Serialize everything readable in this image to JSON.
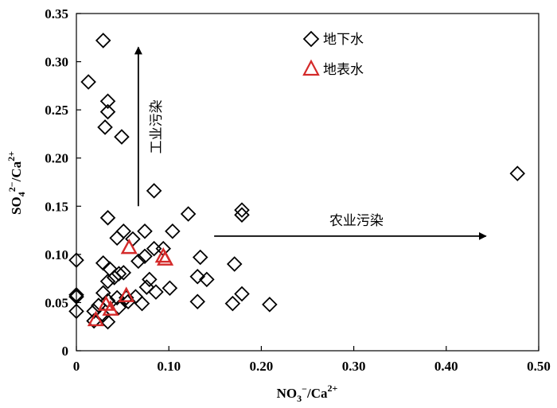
{
  "chart_data": {
    "type": "scatter",
    "xlabel": "NO3-/Ca2+",
    "ylabel": "SO42-/Ca2+",
    "xlim": [
      0,
      0.5
    ],
    "ylim": [
      0,
      0.35
    ],
    "x_ticks": [
      "0",
      "0.10",
      "0.20",
      "0.30",
      "0.40",
      "0.50"
    ],
    "y_ticks": [
      "0",
      "0.05",
      "0.10",
      "0.15",
      "0.20",
      "0.25",
      "0.30",
      "0.35"
    ],
    "legend_position": "top-right",
    "series": [
      {
        "name": "地下水",
        "marker": "diamond",
        "color": "#000000",
        "points": [
          [
            0.0,
            0.094
          ],
          [
            0.0,
            0.058
          ],
          [
            0.0,
            0.056
          ],
          [
            0.0,
            0.041
          ],
          [
            0.013,
            0.279
          ],
          [
            0.029,
            0.322
          ],
          [
            0.034,
            0.259
          ],
          [
            0.034,
            0.248
          ],
          [
            0.031,
            0.232
          ],
          [
            0.049,
            0.222
          ],
          [
            0.084,
            0.166
          ],
          [
            0.477,
            0.184
          ],
          [
            0.179,
            0.146
          ],
          [
            0.179,
            0.141
          ],
          [
            0.121,
            0.142
          ],
          [
            0.034,
            0.138
          ],
          [
            0.051,
            0.124
          ],
          [
            0.074,
            0.124
          ],
          [
            0.104,
            0.124
          ],
          [
            0.044,
            0.117
          ],
          [
            0.061,
            0.116
          ],
          [
            0.084,
            0.106
          ],
          [
            0.094,
            0.106
          ],
          [
            0.074,
            0.098
          ],
          [
            0.067,
            0.093
          ],
          [
            0.134,
            0.097
          ],
          [
            0.171,
            0.09
          ],
          [
            0.029,
            0.091
          ],
          [
            0.036,
            0.085
          ],
          [
            0.046,
            0.08
          ],
          [
            0.041,
            0.076
          ],
          [
            0.034,
            0.072
          ],
          [
            0.079,
            0.074
          ],
          [
            0.131,
            0.077
          ],
          [
            0.141,
            0.074
          ],
          [
            0.101,
            0.065
          ],
          [
            0.076,
            0.066
          ],
          [
            0.086,
            0.061
          ],
          [
            0.064,
            0.056
          ],
          [
            0.029,
            0.06
          ],
          [
            0.034,
            0.052
          ],
          [
            0.044,
            0.055
          ],
          [
            0.056,
            0.051
          ],
          [
            0.071,
            0.049
          ],
          [
            0.024,
            0.047
          ],
          [
            0.019,
            0.041
          ],
          [
            0.029,
            0.037
          ],
          [
            0.046,
            0.045
          ],
          [
            0.131,
            0.051
          ],
          [
            0.179,
            0.059
          ],
          [
            0.169,
            0.049
          ],
          [
            0.209,
            0.048
          ],
          [
            0.019,
            0.031
          ],
          [
            0.034,
            0.03
          ],
          [
            0.054,
            0.055
          ],
          [
            0.051,
            0.081
          ]
        ]
      },
      {
        "name": "地表水",
        "marker": "triangle",
        "color": "#d42a2a",
        "points": [
          [
            0.057,
            0.107
          ],
          [
            0.096,
            0.095
          ],
          [
            0.094,
            0.098
          ],
          [
            0.054,
            0.057
          ],
          [
            0.032,
            0.048
          ],
          [
            0.037,
            0.043
          ],
          [
            0.021,
            0.032
          ]
        ]
      }
    ],
    "annotations": [
      {
        "text": "工业污染",
        "direction": "up",
        "from": [
          0.067,
          0.15
        ],
        "to": [
          0.067,
          0.315
        ]
      },
      {
        "text": "农业污染",
        "direction": "right",
        "from": [
          0.149,
          0.119
        ],
        "to": [
          0.443,
          0.119
        ]
      }
    ]
  }
}
